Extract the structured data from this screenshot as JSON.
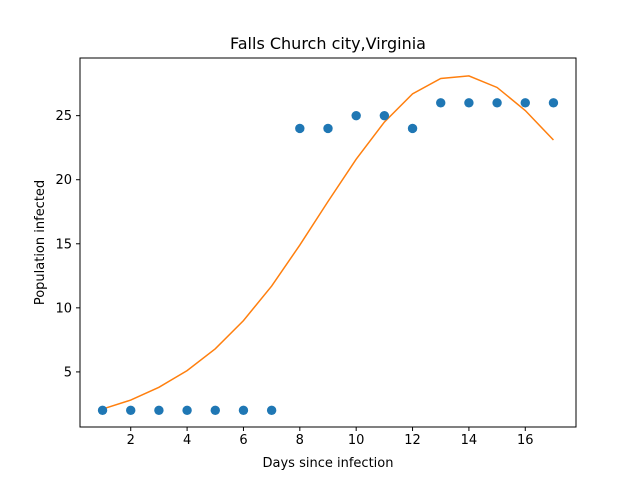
{
  "chart_data": {
    "type": "scatter",
    "title": "Falls Church city,Virginia",
    "xlabel": "Days since infection",
    "ylabel": "Population infected",
    "xlim": [
      0.2,
      17.8
    ],
    "ylim": [
      0.7,
      29.5
    ],
    "xticks": [
      2,
      4,
      6,
      8,
      10,
      12,
      14,
      16
    ],
    "yticks": [
      5,
      10,
      15,
      20,
      25
    ],
    "grid": false,
    "series": [
      {
        "kind": "scatter",
        "color": "#1f77b4",
        "x": [
          1,
          2,
          3,
          4,
          5,
          6,
          7,
          8,
          9,
          10,
          11,
          12,
          13,
          14,
          15,
          16,
          17
        ],
        "y": [
          2,
          2,
          2,
          2,
          2,
          2,
          2,
          24,
          24,
          25,
          25,
          24,
          26,
          26,
          26,
          26,
          26
        ]
      },
      {
        "kind": "line",
        "color": "#ff7f0e",
        "x": [
          1,
          2,
          3,
          4,
          5,
          6,
          7,
          8,
          9,
          10,
          11,
          12,
          13,
          14,
          15,
          16,
          17
        ],
        "y": [
          2.1,
          2.8,
          3.8,
          5.1,
          6.8,
          9.0,
          11.7,
          14.9,
          18.3,
          21.6,
          24.5,
          26.7,
          27.9,
          28.1,
          27.2,
          25.4,
          23.1
        ]
      }
    ]
  }
}
